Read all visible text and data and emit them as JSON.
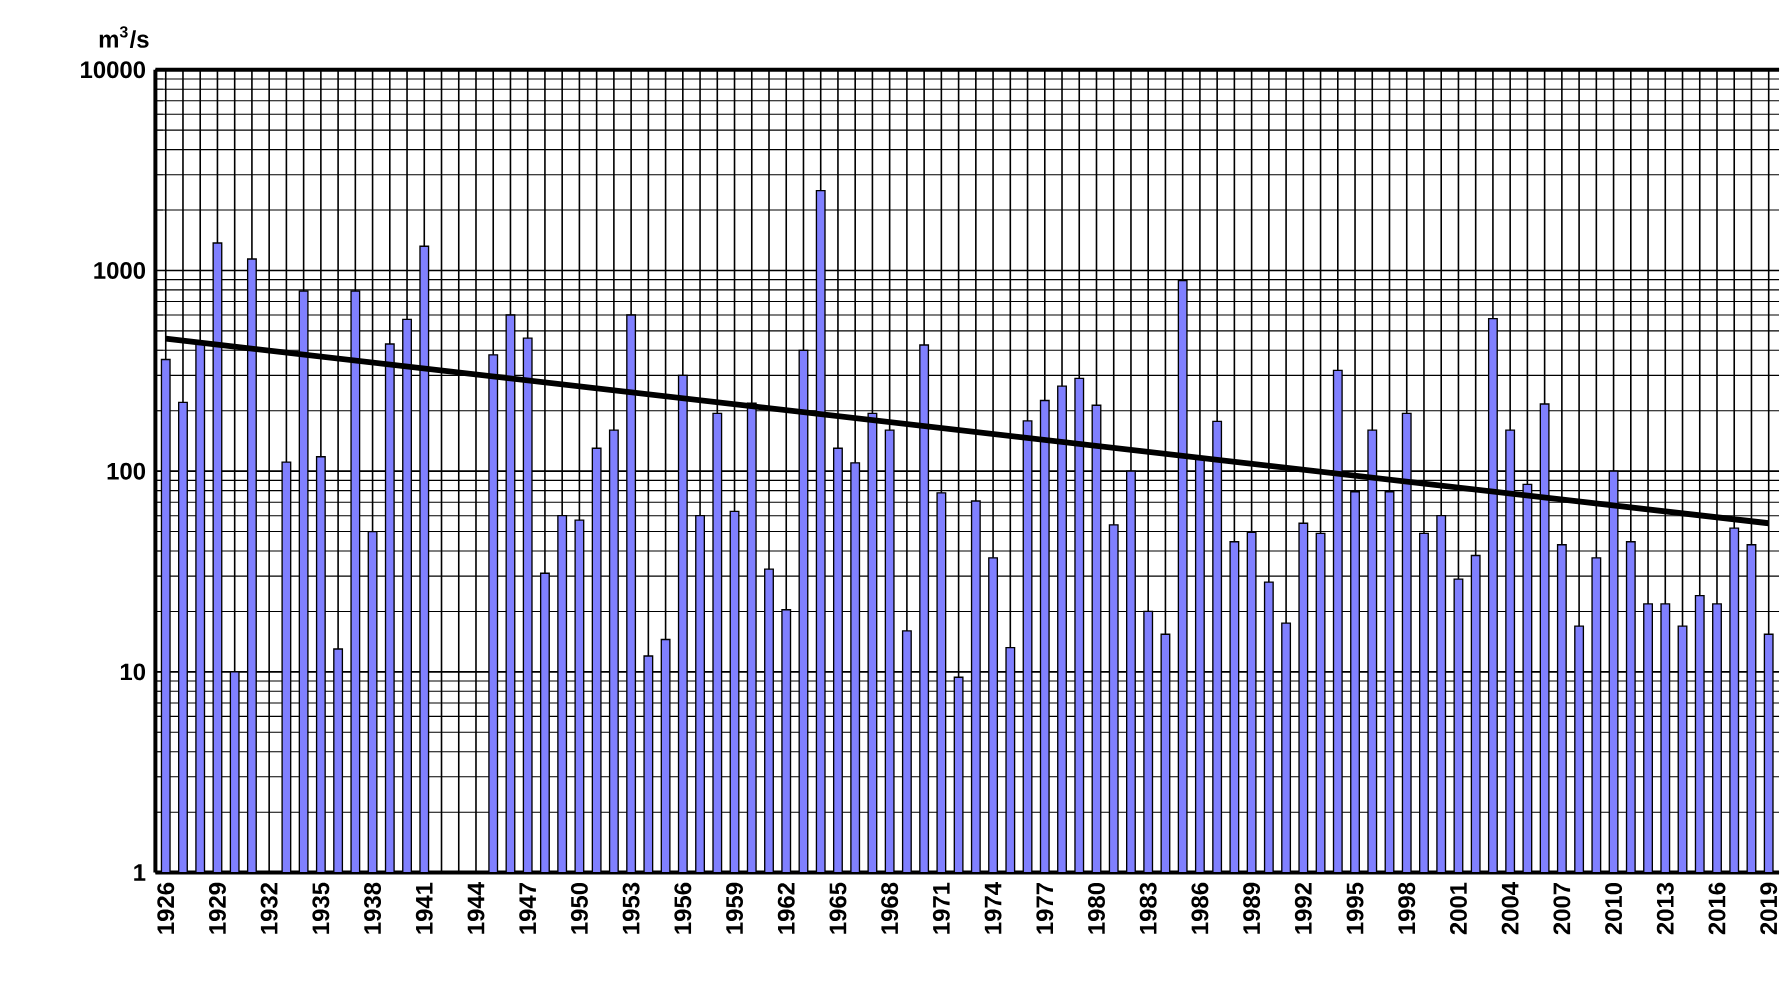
{
  "chart_data": {
    "type": "bar",
    "ylabel": "m$^{3}$/s",
    "log": "y",
    "grid": true,
    "ylim": [
      1,
      10000
    ],
    "yticks": [
      1,
      10,
      100,
      1000,
      10000
    ],
    "categories": [
      "1926",
      null,
      null,
      "1929",
      null,
      null,
      "1932",
      null,
      null,
      "1935",
      null,
      null,
      "1938",
      null,
      null,
      "1941",
      null,
      null,
      "1944",
      null,
      null,
      "1947",
      null,
      null,
      "1950",
      null,
      null,
      "1953",
      null,
      null,
      "1956",
      null,
      null,
      "1959",
      null,
      null,
      "1962",
      null,
      null,
      "1965",
      null,
      null,
      "1968",
      null,
      null,
      "1971",
      null,
      null,
      "1974",
      null,
      null,
      "1977",
      null,
      null,
      "1980",
      null,
      null,
      "1983",
      null,
      null,
      "1986",
      null,
      null,
      "1989",
      null,
      null,
      "1992",
      null,
      null,
      "1995",
      null,
      null,
      "1998",
      null,
      null,
      "2001",
      null,
      null,
      "2004",
      null,
      null,
      "2007",
      null,
      null,
      "2010",
      null,
      null,
      "2013",
      null,
      null,
      "2016",
      null,
      null,
      "2019"
    ],
    "series": [
      {
        "color": "#8080ff",
        "values": [
          360,
          220,
          430,
          1370,
          10,
          1140,
          null,
          111,
          790,
          118,
          13,
          790,
          50,
          430,
          570,
          1320,
          null,
          null,
          null,
          380,
          600,
          460,
          31,
          60,
          57,
          130,
          160,
          600,
          12,
          14.5,
          300,
          60,
          194,
          63,
          218,
          32.5,
          20.4,
          400,
          2500,
          130,
          110,
          194,
          160,
          16,
          425,
          78,
          9.4,
          71,
          37,
          13.2,
          178,
          225,
          265,
          290,
          213,
          54,
          100,
          20,
          15.4,
          890,
          118,
          177,
          44.5,
          49.6,
          28,
          17.5,
          55,
          49,
          318,
          79,
          160,
          79,
          194,
          49,
          60,
          29,
          38,
          575,
          160,
          86,
          216,
          43,
          16.9,
          37,
          100,
          44.5,
          21.8,
          21.8,
          16.9,
          24,
          21.8,
          52,
          43,
          15.4
        ]
      },
      {
        "type": "line",
        "color": "#000000",
        "values": [
          457,
          null,
          null,
          null,
          null,
          null,
          null,
          null,
          null,
          null,
          null,
          null,
          null,
          null,
          null,
          null,
          null,
          null,
          null,
          null,
          null,
          null,
          null,
          null,
          null,
          null,
          null,
          null,
          null,
          null,
          null,
          null,
          null,
          null,
          null,
          null,
          null,
          null,
          null,
          null,
          null,
          null,
          null,
          null,
          null,
          null,
          null,
          null,
          null,
          null,
          null,
          null,
          null,
          null,
          null,
          null,
          null,
          null,
          null,
          null,
          null,
          null,
          null,
          null,
          null,
          null,
          null,
          null,
          null,
          null,
          null,
          null,
          null,
          null,
          null,
          null,
          null,
          null,
          null,
          null,
          null,
          null,
          null,
          null,
          null,
          null,
          null,
          null,
          null,
          null,
          null,
          null,
          null,
          55
        ]
      }
    ]
  }
}
